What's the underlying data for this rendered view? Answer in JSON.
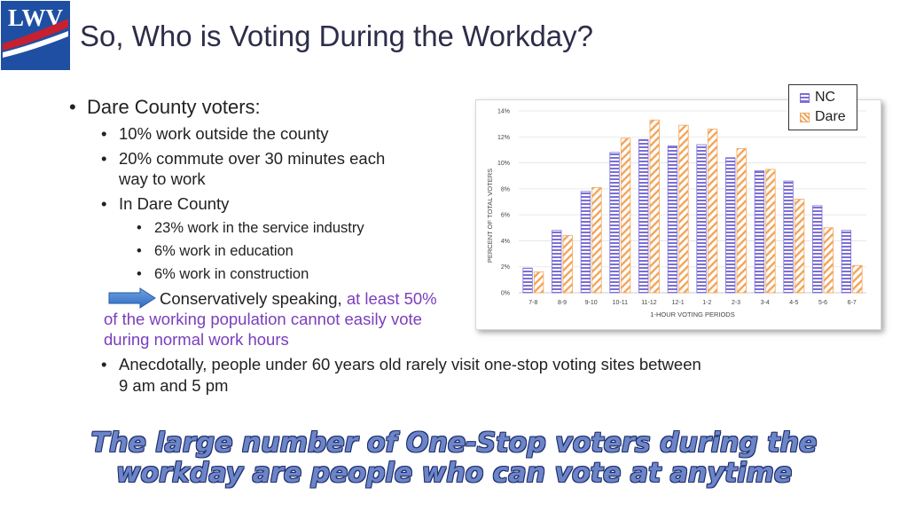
{
  "logo": {
    "text": "LWV"
  },
  "title": "So, Who is Voting During the Workday?",
  "bullets": {
    "b1": "Dare County voters:",
    "b1_1": "10% work outside the county",
    "b1_2_line1": "20% commute over 30 minutes each",
    "b1_2_line2": "way to work",
    "b1_3": "In Dare County",
    "b1_3_1": "23% work in the service industry",
    "b1_3_2": "6% work in education",
    "b1_3_3": "6% work in construction",
    "arrow_text": "Conservatively speaking,",
    "arrow_highlight": "at least 50%",
    "hl_line2": "of the working population cannot easily vote",
    "hl_line3": "during normal work hours",
    "b2_line1": "Anecdotally, people under 60 years old rarely visit one-stop voting sites between",
    "b2_line2": "9 am and 5 pm"
  },
  "tagline": {
    "line1": "The large number of One-Stop voters during the",
    "line2": "workday are people who can vote at anytime"
  },
  "legend": {
    "nc": "NC",
    "dare": "Dare"
  },
  "colors": {
    "nc": "#7b6fd4",
    "dare": "#f2a55a",
    "logo": "#1f4fa3",
    "logo_stripe": "#c8202f"
  },
  "chart_data": {
    "type": "bar",
    "xlabel": "1-HOUR VOTING PERIODS",
    "ylabel": "PERCENT OF TOTAL VOTERS",
    "ylim": [
      0,
      14
    ],
    "yticks": [
      "0%",
      "2%",
      "4%",
      "6%",
      "8%",
      "10%",
      "12%",
      "14%"
    ],
    "categories": [
      "7-8",
      "8-9",
      "9-10",
      "10-11",
      "11-12",
      "12-1",
      "1-2",
      "2-3",
      "3-4",
      "4-5",
      "5-6",
      "6-7"
    ],
    "series": [
      {
        "name": "NC",
        "values": [
          1.9,
          4.8,
          7.8,
          10.8,
          11.8,
          11.3,
          11.4,
          10.4,
          9.4,
          8.6,
          6.7,
          4.8
        ]
      },
      {
        "name": "Dare",
        "values": [
          1.6,
          4.4,
          8.1,
          11.9,
          13.3,
          12.9,
          12.6,
          11.1,
          9.5,
          7.2,
          5.0,
          2.1
        ]
      }
    ],
    "grid": true,
    "legend": "top-right"
  }
}
